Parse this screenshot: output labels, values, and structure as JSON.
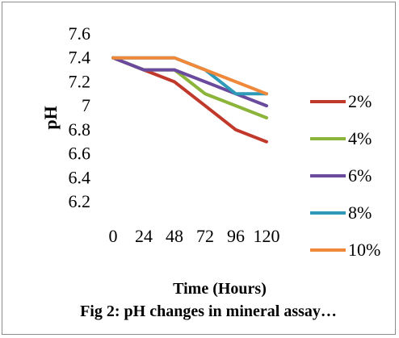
{
  "chart_data": {
    "type": "line",
    "title": "",
    "caption": "Fig 2: pH changes in mineral assay…",
    "xlabel": "Time (Hours)",
    "ylabel": "pH",
    "categories": [
      "0",
      "24",
      "48",
      "72",
      "96",
      "120"
    ],
    "x": [
      0,
      24,
      48,
      72,
      96,
      120
    ],
    "ylim": [
      6.2,
      7.6
    ],
    "yticks": [
      "6.2",
      "6.4",
      "6.6",
      "6.8",
      "7",
      "7.2",
      "7.4",
      "7.6"
    ],
    "grid": false,
    "legend_position": "right",
    "series": [
      {
        "name": "2%",
        "color": "#c0392b",
        "values": [
          7.4,
          7.3,
          7.2,
          7.0,
          6.8,
          6.7
        ]
      },
      {
        "name": "4%",
        "color": "#8bb43a",
        "values": [
          7.4,
          7.3,
          7.3,
          7.1,
          7.0,
          6.9
        ]
      },
      {
        "name": "6%",
        "color": "#6a4a9c",
        "values": [
          7.4,
          7.3,
          7.3,
          7.2,
          7.1,
          7.0
        ]
      },
      {
        "name": "8%",
        "color": "#2e9ab8",
        "values": [
          7.4,
          7.4,
          7.4,
          7.3,
          7.1,
          7.1
        ]
      },
      {
        "name": "10%",
        "color": "#f0883a",
        "values": [
          7.4,
          7.4,
          7.4,
          7.3,
          7.2,
          7.1
        ]
      }
    ]
  }
}
